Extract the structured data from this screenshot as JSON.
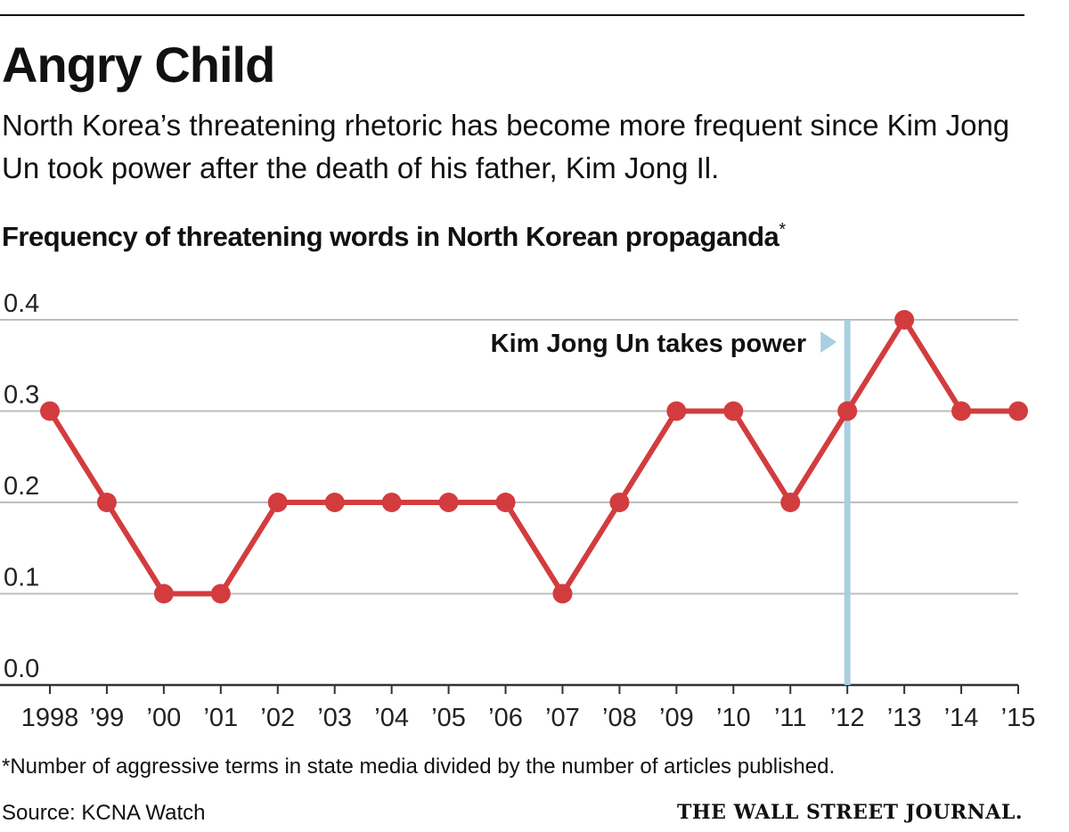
{
  "header": {
    "title": "Angry Child",
    "subtitle": "North Korea’s threatening rhetoric has become more frequent since Kim Jong Un took power after the death of his father, Kim Jong Il.",
    "chart_heading": "Frequency of threatening words in North Korean propaganda",
    "chart_heading_mark": "*"
  },
  "footer": {
    "footnote": "*Number of aggressive terms in state media divided by the number of articles published.",
    "source": "Source: KCNA Watch",
    "logo": "THE WALL STREET JOURNAL."
  },
  "chart_data": {
    "type": "line",
    "title": "Frequency of threatening words in North Korean propaganda*",
    "xlabel": "",
    "ylabel": "",
    "categories": [
      "1998",
      "’99",
      "’00",
      "’01",
      "’02",
      "’03",
      "’04",
      "’05",
      "’06",
      "’07",
      "’08",
      "’09",
      "’10",
      "’11",
      "’12",
      "’13",
      "’14",
      "’15"
    ],
    "series": [
      {
        "name": "Frequency",
        "values": [
          0.3,
          0.2,
          0.1,
          0.1,
          0.2,
          0.2,
          0.2,
          0.2,
          0.2,
          0.1,
          0.2,
          0.3,
          0.3,
          0.2,
          0.3,
          0.4,
          0.3,
          0.3
        ]
      }
    ],
    "ylim": [
      0,
      0.4
    ],
    "yticks": [
      "0.0",
      "0.1",
      "0.2",
      "0.3",
      "0.4"
    ],
    "grid": true,
    "annotation": {
      "label": "Kim Jong Un takes power",
      "category": "’12"
    },
    "colors": {
      "line": "#d33c3f",
      "marker": "#d33c3f",
      "annotation": "#a9cfe0",
      "grid": "#bdbdbd",
      "axis": "#333333"
    }
  }
}
